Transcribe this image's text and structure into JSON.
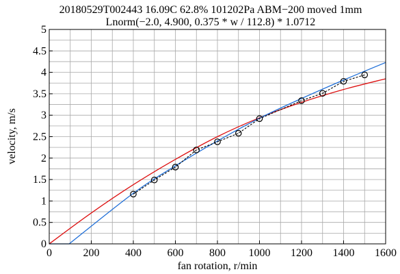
{
  "chart_data": {
    "type": "line",
    "title": "20180529T002443 16.09C 62.8% 101202Pa ABM−200 moved 1mm",
    "subtitle": "Lnorm(−2.0, 4.900, 0.375 * w / 112.8) * 1.0712",
    "xlabel": "fan rotation, r/min",
    "ylabel": "velocity, m/s",
    "xlim": [
      0,
      1600
    ],
    "ylim": [
      0,
      5
    ],
    "x_ticks": [
      0,
      200,
      400,
      600,
      800,
      1000,
      1200,
      1400,
      1600
    ],
    "x_tick_labels": [
      "0",
      "200",
      "400",
      "600",
      "800",
      "1000",
      "1200",
      "1400",
      "1600"
    ],
    "y_ticks": [
      0,
      0.5,
      1,
      1.5,
      2,
      2.5,
      3,
      3.5,
      4,
      4.5,
      5
    ],
    "y_tick_labels": [
      "0",
      "0.5",
      "1",
      "1.5",
      "2",
      "2.5",
      "3",
      "3.5",
      "4",
      "4.5",
      "5"
    ],
    "x_minor_step": 100,
    "y_minor_step": 0.25,
    "grid": true,
    "series": [
      {
        "style": "measured points, dashed line with circle markers",
        "color": "#000000",
        "x": [
          400,
          500,
          600,
          700,
          800,
          900,
          1000,
          1200,
          1300,
          1400,
          1500
        ],
        "y": [
          1.16,
          1.49,
          1.79,
          2.19,
          2.38,
          2.58,
          2.92,
          3.34,
          3.51,
          3.79,
          3.94
        ]
      },
      {
        "style": "solid line",
        "color": "#1f6fd8",
        "x": [
          0,
          95,
          400,
          600,
          800,
          1000,
          1200,
          1400,
          1600
        ],
        "y": [
          0,
          0,
          1.18,
          1.82,
          2.4,
          2.93,
          3.39,
          3.82,
          4.23
        ]
      },
      {
        "style": "solid line",
        "color": "#dd1111",
        "x": [
          0,
          200,
          400,
          600,
          800,
          1000,
          1200,
          1400,
          1600
        ],
        "y": [
          0,
          0.72,
          1.38,
          1.97,
          2.5,
          2.94,
          3.3,
          3.6,
          3.85
        ]
      }
    ]
  }
}
